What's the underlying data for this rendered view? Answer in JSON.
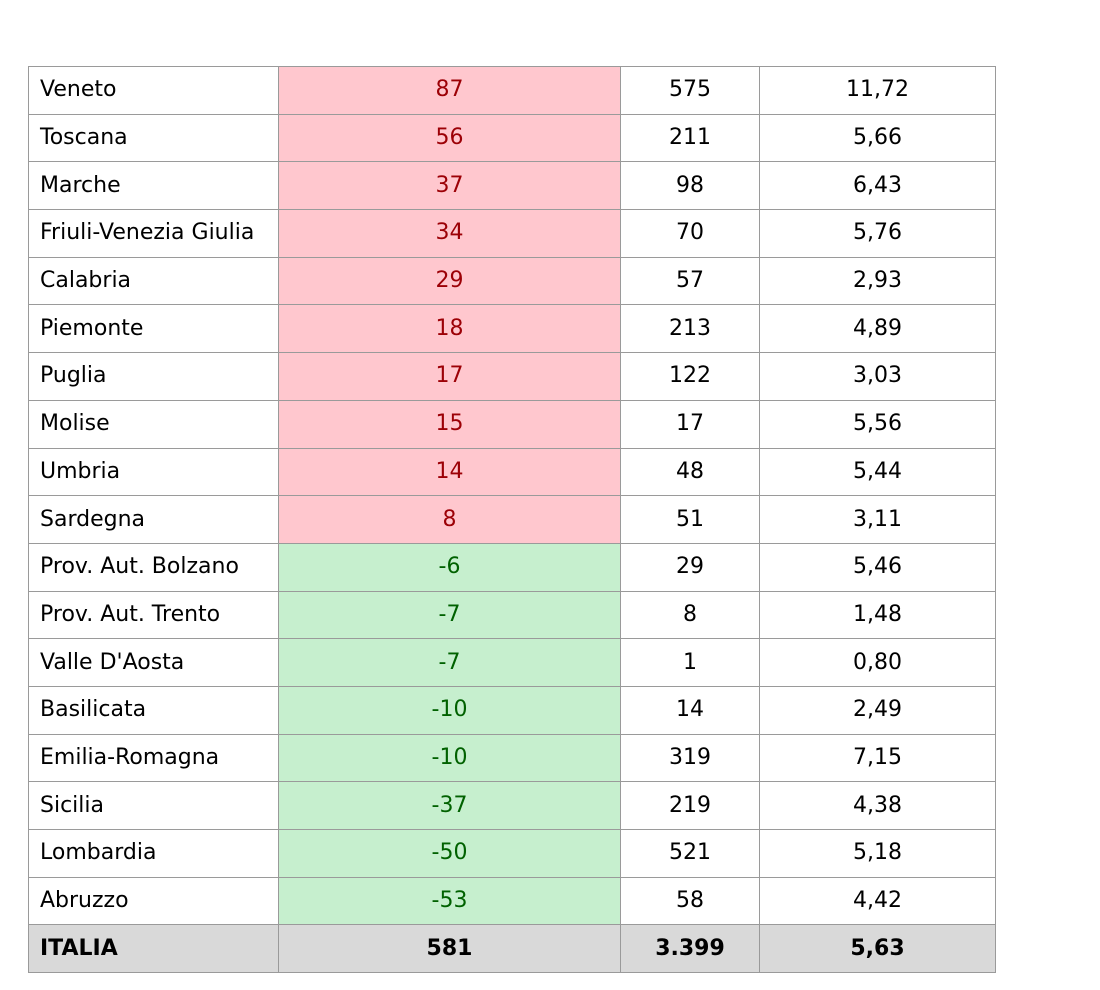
{
  "rows": [
    {
      "region": "Veneto",
      "change": "87",
      "value": "575",
      "ratio": "11,72",
      "trend": "up"
    },
    {
      "region": "Toscana",
      "change": "56",
      "value": "211",
      "ratio": "5,66",
      "trend": "up"
    },
    {
      "region": "Marche",
      "change": "37",
      "value": "98",
      "ratio": "6,43",
      "trend": "up"
    },
    {
      "region": "Friuli-Venezia Giulia",
      "change": "34",
      "value": "70",
      "ratio": "5,76",
      "trend": "up"
    },
    {
      "region": "Calabria",
      "change": "29",
      "value": "57",
      "ratio": "2,93",
      "trend": "up"
    },
    {
      "region": "Piemonte",
      "change": "18",
      "value": "213",
      "ratio": "4,89",
      "trend": "up"
    },
    {
      "region": "Puglia",
      "change": "17",
      "value": "122",
      "ratio": "3,03",
      "trend": "up"
    },
    {
      "region": "Molise",
      "change": "15",
      "value": "17",
      "ratio": "5,56",
      "trend": "up"
    },
    {
      "region": "Umbria",
      "change": "14",
      "value": "48",
      "ratio": "5,44",
      "trend": "up"
    },
    {
      "region": "Sardegna",
      "change": "8",
      "value": "51",
      "ratio": "3,11",
      "trend": "up"
    },
    {
      "region": "Prov. Aut. Bolzano",
      "change": "-6",
      "value": "29",
      "ratio": "5,46",
      "trend": "down"
    },
    {
      "region": "Prov. Aut. Trento",
      "change": "-7",
      "value": "8",
      "ratio": "1,48",
      "trend": "down"
    },
    {
      "region": "Valle D'Aosta",
      "change": "-7",
      "value": "1",
      "ratio": "0,80",
      "trend": "down"
    },
    {
      "region": "Basilicata",
      "change": "-10",
      "value": "14",
      "ratio": "2,49",
      "trend": "down"
    },
    {
      "region": "Emilia-Romagna",
      "change": "-10",
      "value": "319",
      "ratio": "7,15",
      "trend": "down"
    },
    {
      "region": "Sicilia",
      "change": "-37",
      "value": "219",
      "ratio": "4,38",
      "trend": "down"
    },
    {
      "region": "Lombardia",
      "change": "-50",
      "value": "521",
      "ratio": "5,18",
      "trend": "down"
    },
    {
      "region": "Abruzzo",
      "change": "-53",
      "value": "58",
      "ratio": "4,42",
      "trend": "down"
    }
  ],
  "total": {
    "region": "ITALIA",
    "change": "581",
    "value": "3.399",
    "ratio": "5,63"
  },
  "colors": {
    "increase_fill": "#ffc7ce",
    "increase_text": "#9c0006",
    "decrease_fill": "#c6efce",
    "decrease_text": "#006100",
    "total_fill": "#d9d9d9",
    "grid": "#9a9a9a"
  }
}
